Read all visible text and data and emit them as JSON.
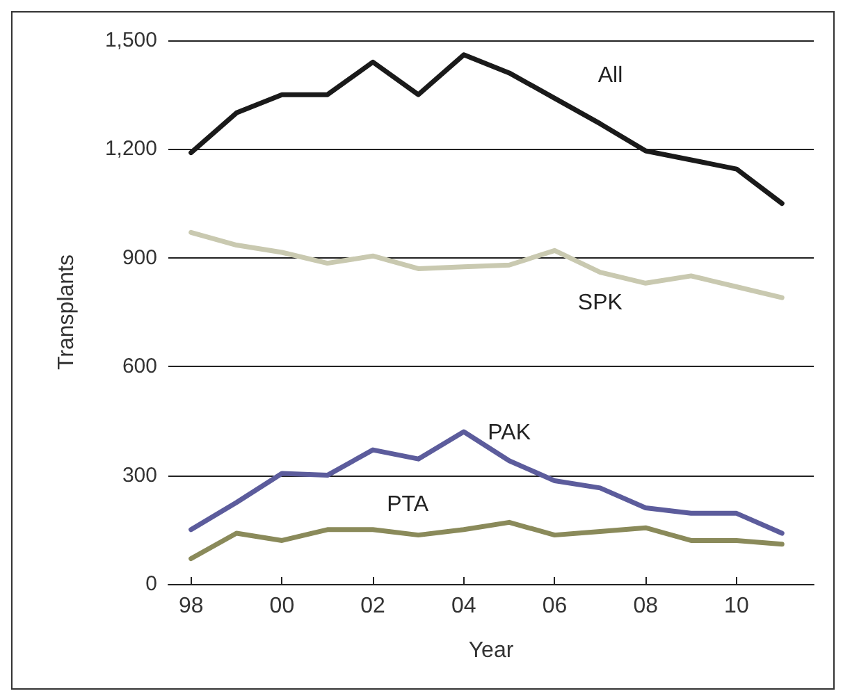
{
  "chart_data": {
    "type": "line",
    "xlabel": "Year",
    "ylabel": "Transplants",
    "x": [
      1998,
      1999,
      2000,
      2001,
      2002,
      2003,
      2004,
      2005,
      2006,
      2007,
      2008,
      2009,
      2010,
      2011
    ],
    "series": [
      {
        "name": "All",
        "color": "#1a1a1a",
        "values": [
          1190,
          1300,
          1350,
          1350,
          1440,
          1350,
          1460,
          1410,
          1340,
          1270,
          1195,
          1170,
          1145,
          1050
        ]
      },
      {
        "name": "SPK",
        "color": "#c9c9b0",
        "values": [
          970,
          935,
          915,
          885,
          905,
          870,
          875,
          880,
          920,
          860,
          830,
          850,
          820,
          790
        ]
      },
      {
        "name": "PAK",
        "color": "#5c5c9c",
        "values": [
          150,
          225,
          305,
          300,
          370,
          345,
          420,
          340,
          285,
          265,
          210,
          195,
          195,
          140
        ]
      },
      {
        "name": "PTA",
        "color": "#8a8a5a",
        "values": [
          70,
          140,
          120,
          150,
          150,
          135,
          150,
          170,
          135,
          145,
          155,
          120,
          120,
          110
        ]
      }
    ],
    "xlim": [
      1997.5,
      2011.7
    ],
    "xticks": [
      {
        "value": 1998,
        "label": "98"
      },
      {
        "value": 2000,
        "label": "00"
      },
      {
        "value": 2002,
        "label": "02"
      },
      {
        "value": 2004,
        "label": "04"
      },
      {
        "value": 2006,
        "label": "06"
      },
      {
        "value": 2008,
        "label": "08"
      },
      {
        "value": 2010,
        "label": "10"
      }
    ],
    "ylim": [
      0,
      1500
    ],
    "yticks": [
      0,
      300,
      600,
      900,
      {
        "value": 1200,
        "label": "1,200"
      },
      {
        "value": 1500,
        "label": "1,500"
      }
    ],
    "grid": "y",
    "legend": false,
    "marker": "none",
    "line_style": "solid"
  }
}
